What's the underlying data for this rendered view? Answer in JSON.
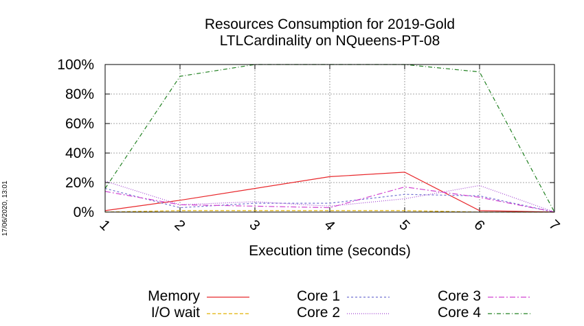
{
  "timestamp": "17/06/2020, 13:01",
  "chart_data": {
    "type": "line",
    "title": "Resources Consumption for 2019-Gold",
    "subtitle": "LTLCardinality on NQueens-PT-08",
    "xlabel": "Execution time (seconds)",
    "ylabel": "",
    "x": [
      1,
      2,
      3,
      4,
      5,
      6,
      7
    ],
    "xticks": [
      "1",
      "2",
      "3",
      "4",
      "5",
      "6",
      "7"
    ],
    "yticks": [
      "0%",
      "20%",
      "40%",
      "60%",
      "80%",
      "100%"
    ],
    "xlim": [
      1,
      7
    ],
    "ylim": [
      0,
      100
    ],
    "grid": true,
    "legend_position": "bottom",
    "series": [
      {
        "name": "Memory",
        "color": "#e8262a",
        "dash": "",
        "values": [
          1,
          8,
          16,
          24,
          27,
          1,
          0
        ]
      },
      {
        "name": "I/O wait",
        "color": "#e0b000",
        "dash": "5,3",
        "values": [
          0,
          1,
          1,
          1,
          1,
          0,
          0
        ]
      },
      {
        "name": "Core 1",
        "color": "#7070d0",
        "dash": "3,3",
        "values": [
          16,
          3,
          6,
          6,
          12,
          11,
          0
        ]
      },
      {
        "name": "Core 2",
        "color": "#a040d0",
        "dash": "1,2",
        "values": [
          21,
          5,
          7,
          4,
          9,
          18,
          0
        ]
      },
      {
        "name": "Core 3",
        "color": "#d040d0",
        "dash": "8,3,2,3",
        "values": [
          14,
          5,
          4,
          3,
          17,
          10,
          0
        ]
      },
      {
        "name": "Core 4",
        "color": "#208020",
        "dash": "6,3,1,3",
        "values": [
          16,
          92,
          100,
          100,
          100,
          95,
          0
        ]
      }
    ]
  }
}
